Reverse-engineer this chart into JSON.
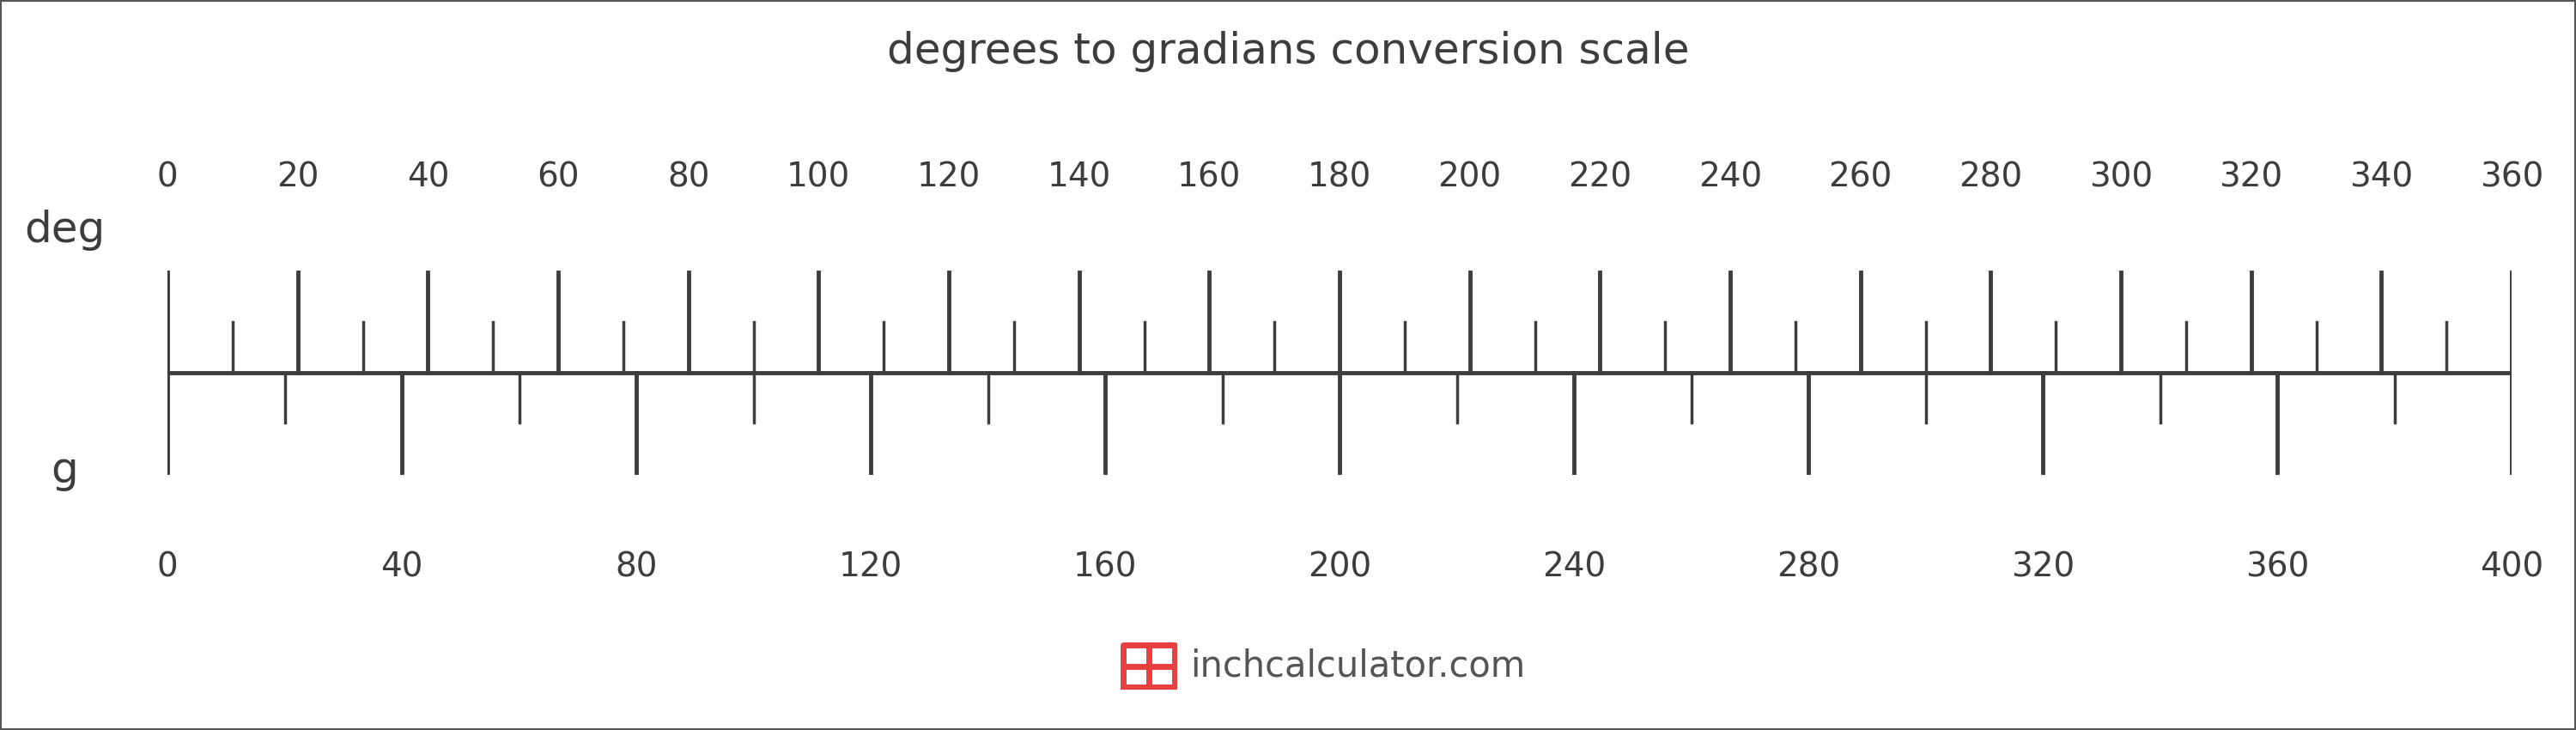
{
  "title": "degrees to gradians conversion scale",
  "title_fontsize": 36,
  "title_color": "#3d3d3d",
  "background_color": "#ffffff",
  "border_color": "#555555",
  "scale_color": "#3d3d3d",
  "deg_label": "deg",
  "g_label": "g",
  "label_fontsize": 36,
  "tick_label_fontsize": 28,
  "deg_major_ticks": [
    0,
    20,
    40,
    60,
    80,
    100,
    120,
    140,
    160,
    180,
    200,
    220,
    240,
    260,
    280,
    300,
    320,
    340,
    360
  ],
  "deg_minor_ticks": [
    10,
    30,
    50,
    70,
    90,
    110,
    130,
    150,
    170,
    190,
    210,
    230,
    250,
    270,
    290,
    310,
    330,
    350
  ],
  "g_major_ticks": [
    0,
    40,
    80,
    120,
    160,
    200,
    240,
    280,
    320,
    360,
    400
  ],
  "g_minor_ticks": [
    20,
    60,
    100,
    140,
    180,
    220,
    260,
    300,
    340,
    380
  ],
  "deg_min": 0,
  "deg_max": 360,
  "g_min": 0,
  "g_max": 400,
  "watermark_text": "inchcalculator.com",
  "watermark_fontsize": 30,
  "watermark_color": "#555555",
  "icon_color": "#e84040"
}
